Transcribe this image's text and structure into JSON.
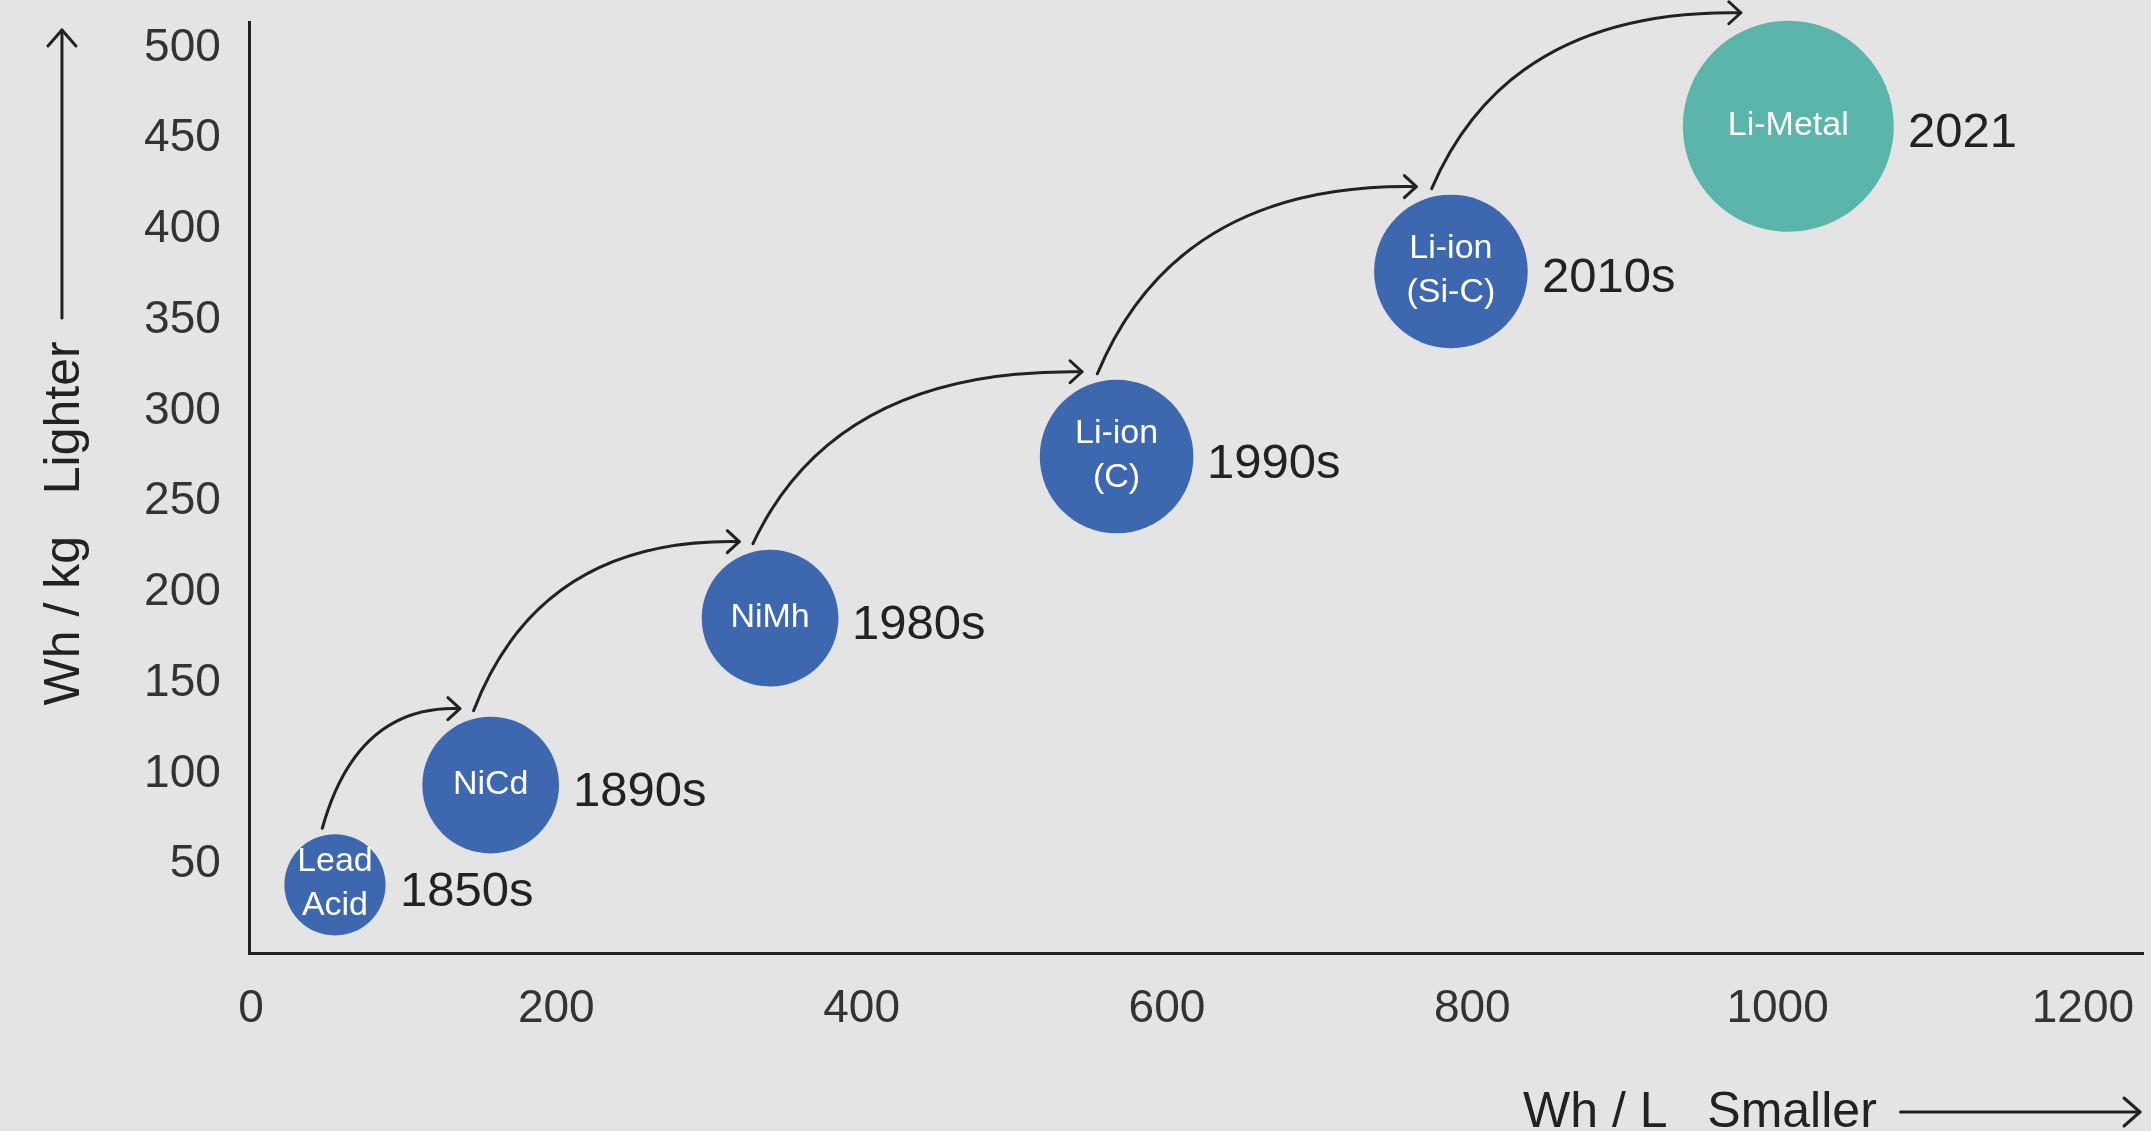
{
  "chart_data": {
    "type": "bubble",
    "xlabel": "Wh / L   Smaller",
    "ylabel": "Wh / kg   Lighter",
    "xlim": [
      0,
      1240
    ],
    "xticks": [
      0,
      200,
      400,
      600,
      800,
      1000,
      1200
    ],
    "ylim": [
      0,
      513
    ],
    "yticks": [
      50,
      100,
      150,
      200,
      250,
      300,
      350,
      400,
      450,
      500
    ],
    "grid": false,
    "legend": false,
    "series": [
      {
        "name": "Lead Acid",
        "color": "#3d68b0",
        "x": [
          55
        ],
        "values": [
          37
        ],
        "sizes": [
          0.23
        ]
      },
      {
        "name": "NiCd",
        "color": "#3d68b0",
        "x": [
          157
        ],
        "values": [
          92
        ],
        "sizes": [
          0.42
        ]
      },
      {
        "name": "NiMh",
        "color": "#3d68b0",
        "x": [
          340
        ],
        "values": [
          184
        ],
        "sizes": [
          0.42
        ]
      },
      {
        "name": "Li-ion (C)",
        "color": "#3d68b0",
        "x": [
          567
        ],
        "values": [
          273
        ],
        "sizes": [
          0.53
        ]
      },
      {
        "name": "Li-ion (Si-C)",
        "color": "#3d68b0",
        "x": [
          786
        ],
        "values": [
          375
        ],
        "sizes": [
          0.53
        ]
      },
      {
        "name": "Li-Metal",
        "color": "#5bb5aa",
        "x": [
          1007
        ],
        "values": [
          455
        ],
        "sizes": [
          1
        ]
      }
    ],
    "annotations": [
      {
        "text": "1850s",
        "x": 55,
        "y": 37
      },
      {
        "text": "1890s",
        "x": 157,
        "y": 92
      },
      {
        "text": "1980s",
        "x": 340,
        "y": 184
      },
      {
        "text": "1990s",
        "x": 567,
        "y": 273
      },
      {
        "text": "2010s",
        "x": 786,
        "y": 375
      },
      {
        "text": "2021",
        "x": 1007,
        "y": 455
      }
    ]
  }
}
